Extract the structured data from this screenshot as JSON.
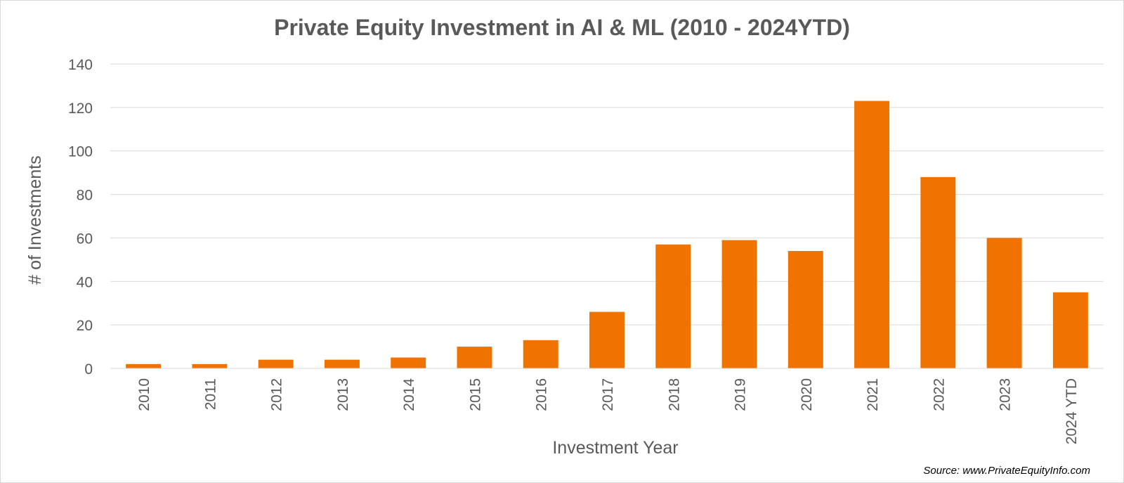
{
  "chart_data": {
    "type": "bar",
    "title": "Private Equity Investment in AI & ML (2010 - 2024YTD)",
    "xlabel": "Investment Year",
    "ylabel": "# of Investments",
    "categories": [
      "2010",
      "2011",
      "2012",
      "2013",
      "2014",
      "2015",
      "2016",
      "2017",
      "2018",
      "2019",
      "2020",
      "2021",
      "2022",
      "2023",
      "2024 YTD"
    ],
    "values": [
      2,
      2,
      4,
      4,
      5,
      10,
      13,
      26,
      57,
      59,
      54,
      123,
      88,
      60,
      35
    ],
    "ylim": [
      0,
      140
    ],
    "yticks": [
      0,
      20,
      40,
      60,
      80,
      100,
      120,
      140
    ],
    "grid": true,
    "legend": "none",
    "bar_color": "#f07300",
    "source": "Source: www.PrivateEquityInfo.com"
  }
}
